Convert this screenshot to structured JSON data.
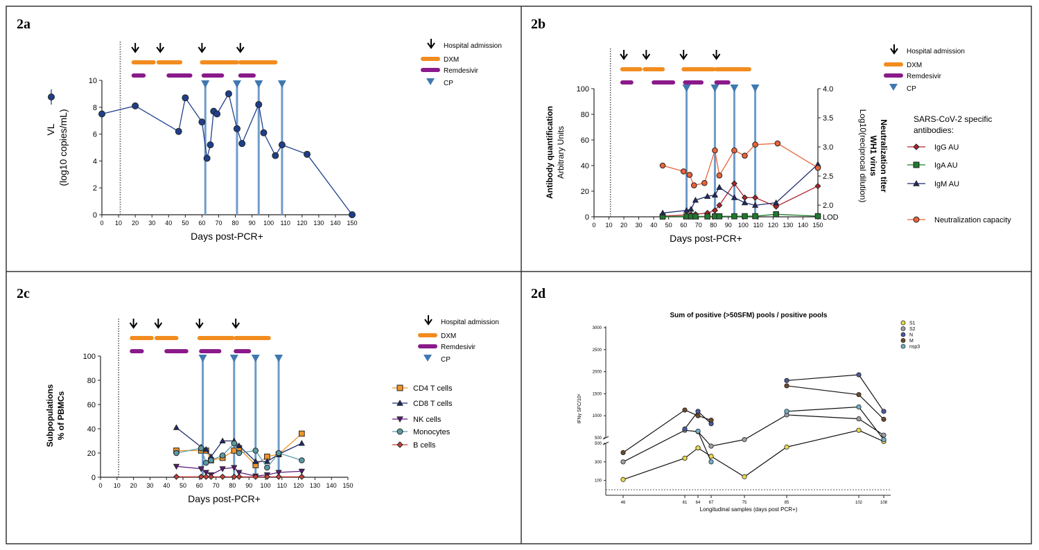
{
  "panels": {
    "a": "2a",
    "b": "2b",
    "c": "2c",
    "d": "2d"
  },
  "chart_data": [
    {
      "panel": "2a",
      "type": "line",
      "xlabel": "Days post-PCR+",
      "ylabel": "(log10 copies/mL)",
      "ylabel_marker": "VL",
      "xlim": [
        0,
        150
      ],
      "ylim": [
        0,
        10
      ],
      "xticks": [
        "0",
        "10",
        "20",
        "30",
        "40",
        "50",
        "60",
        "70",
        "80",
        "90",
        "100",
        "110",
        "120",
        "130",
        "140",
        "150"
      ],
      "yticks": [
        "0",
        "2",
        "4",
        "6",
        "8",
        "10"
      ],
      "treatment_start_day": 11,
      "legend": {
        "hospital": "Hospital admission",
        "dxm": "DXM",
        "remdesivir": "Remdesivir",
        "cp": "CP"
      },
      "admissions": [
        20,
        35,
        60,
        83
      ],
      "dxm": [
        [
          19,
          31
        ],
        [
          34,
          47
        ],
        [
          60,
          81
        ],
        [
          83,
          104
        ]
      ],
      "remdesivir": [
        [
          19,
          25
        ],
        [
          40,
          53
        ],
        [
          61,
          72
        ],
        [
          83,
          91
        ]
      ],
      "cp_days": [
        62,
        81,
        94,
        108
      ],
      "series": [
        {
          "x": [
            0,
            20,
            46,
            50,
            60,
            63,
            65,
            67,
            69,
            76,
            81,
            84,
            94,
            97,
            104,
            108,
            123,
            150
          ],
          "y": [
            7.5,
            8.1,
            6.2,
            8.7,
            6.9,
            4.2,
            5.2,
            7.7,
            7.5,
            9.0,
            6.4,
            5.3,
            8.2,
            6.1,
            4.4,
            5.2,
            4.5,
            0.0
          ]
        }
      ]
    },
    {
      "panel": "2b",
      "type": "line",
      "xlabel": "Days post-PCR+",
      "ylabel_left": [
        "Antibody quantification",
        "Arbitrary Units"
      ],
      "ylabel_right": [
        "Neutralization titer",
        "WH1 virus",
        "Log10(reciprocal dilution)"
      ],
      "xlim": [
        0,
        150
      ],
      "ylim_left": [
        0,
        100
      ],
      "ylim_right": [
        1.8,
        4.0
      ],
      "xticks": [
        "0",
        "10",
        "20",
        "30",
        "40",
        "50",
        "60",
        "70",
        "80",
        "90",
        "100",
        "110",
        "120",
        "130",
        "140",
        "150"
      ],
      "yticks_left": [
        "0",
        "20",
        "40",
        "60",
        "80",
        "100"
      ],
      "yticks_right": [
        "LOD",
        "2.0",
        "2.5",
        "3.0",
        "3.5",
        "4.0"
      ],
      "treatment_start_day": 11,
      "legend": {
        "hospital": "Hospital admission",
        "dxm": "DXM",
        "remdesivir": "Remdesivir",
        "cp": "CP"
      },
      "antibody_legend_title": "SARS-CoV-2 specific antibodies:",
      "admissions": [
        20,
        35,
        60,
        82
      ],
      "dxm": [
        [
          19,
          31
        ],
        [
          34,
          46
        ],
        [
          60,
          80
        ],
        [
          82,
          104
        ]
      ],
      "remdesivir": [
        [
          19,
          25
        ],
        [
          40,
          53
        ],
        [
          61,
          72
        ],
        [
          82,
          90
        ]
      ],
      "cp_days": [
        62,
        81,
        94,
        108
      ],
      "series": [
        {
          "name": "IgG AU",
          "color": "#b0242c",
          "marker": "diamond",
          "x": [
            46,
            62,
            65,
            68,
            76,
            81,
            84,
            94,
            101,
            108,
            122,
            150
          ],
          "y": [
            0.5,
            1.5,
            1.8,
            2.0,
            3.0,
            5.0,
            9.0,
            26.0,
            15.0,
            15.0,
            8.0,
            24.0
          ]
        },
        {
          "name": "IgA AU",
          "color": "#1f7a2c",
          "marker": "square",
          "x": [
            46,
            62,
            65,
            68,
            76,
            81,
            84,
            94,
            101,
            108,
            122,
            150
          ],
          "y": [
            0.2,
            0.3,
            0.3,
            0.3,
            0.3,
            0.4,
            0.4,
            0.4,
            0.5,
            0.5,
            2.0,
            0.5
          ]
        },
        {
          "name": "IgM AU",
          "color": "#1f2a6e",
          "marker": "triangle",
          "x": [
            46,
            62,
            65,
            68,
            76,
            81,
            84,
            94,
            101,
            108,
            122,
            150
          ],
          "y": [
            3.0,
            5.0,
            6.0,
            13.0,
            16.0,
            17.0,
            23.0,
            15.0,
            11.0,
            9.0,
            11.0,
            41.0
          ]
        },
        {
          "name": "Neutralization capacity",
          "color": "#e8643a",
          "marker": "circle",
          "axis": "right",
          "x": [
            46,
            60,
            64,
            67,
            74,
            81,
            84,
            94,
            101,
            108,
            123,
            150
          ],
          "y": [
            2.68,
            2.58,
            2.52,
            2.34,
            2.38,
            2.94,
            2.51,
            2.94,
            2.85,
            3.04,
            3.06,
            2.64
          ]
        }
      ]
    },
    {
      "panel": "2c",
      "type": "line",
      "xlabel": "Days post-PCR+",
      "ylabel": [
        "Subpopulations",
        "% of PBMCs"
      ],
      "xlim": [
        0,
        150
      ],
      "ylim": [
        0,
        100
      ],
      "xticks": [
        "0",
        "10",
        "20",
        "30",
        "40",
        "50",
        "60",
        "70",
        "80",
        "90",
        "100",
        "110",
        "120",
        "130",
        "140",
        "150"
      ],
      "yticks": [
        "0",
        "20",
        "40",
        "60",
        "80",
        "100"
      ],
      "treatment_start_day": 11,
      "legend": {
        "hospital": "Hospital admission",
        "dxm": "DXM",
        "remdesivir": "Remdesivir",
        "cp": "CP"
      },
      "admissions": [
        20,
        35,
        60,
        82
      ],
      "dxm": [
        [
          19,
          31
        ],
        [
          34,
          46
        ],
        [
          60,
          80
        ],
        [
          82,
          102
        ]
      ],
      "remdesivir": [
        [
          19,
          25
        ],
        [
          40,
          52
        ],
        [
          61,
          72
        ],
        [
          82,
          90
        ]
      ],
      "cp_days": [
        62,
        81,
        94,
        108
      ],
      "series": [
        {
          "name": "CD4 T cells",
          "color": "#f0952b",
          "marker": "square",
          "x": [
            46,
            61,
            64,
            67,
            74,
            81,
            84,
            94,
            101,
            108,
            122
          ],
          "y": [
            22,
            22,
            22,
            14,
            16,
            22,
            24,
            10,
            17,
            19,
            36
          ]
        },
        {
          "name": "CD8 T cells",
          "color": "#1f2a6e",
          "marker": "triangle",
          "x": [
            46,
            61,
            64,
            67,
            74,
            81,
            84,
            94,
            101,
            108,
            122
          ],
          "y": [
            41,
            25,
            23,
            17,
            30,
            30,
            26,
            13,
            13,
            19,
            28
          ]
        },
        {
          "name": "NK cells",
          "color": "#5c1a7a",
          "marker": "triangle-down",
          "x": [
            46,
            61,
            64,
            67,
            74,
            81,
            84,
            94,
            101,
            108,
            122
          ],
          "y": [
            9,
            7,
            4,
            2,
            7,
            8,
            4,
            1,
            2,
            4,
            5
          ]
        },
        {
          "name": "Monocytes",
          "color": "#5c9aa4",
          "marker": "circle",
          "x": [
            46,
            61,
            64,
            67,
            74,
            81,
            84,
            94,
            101,
            108,
            122
          ],
          "y": [
            20,
            24,
            12,
            14,
            18,
            28,
            20,
            22,
            8,
            20,
            14
          ]
        },
        {
          "name": "B cells",
          "color": "#c8423c",
          "marker": "diamond",
          "x": [
            46,
            61,
            64,
            67,
            74,
            81,
            84,
            94,
            101,
            108,
            122
          ],
          "y": [
            0.4,
            0.4,
            0.4,
            0.4,
            0.4,
            0.4,
            0.4,
            0.4,
            0.4,
            0.4,
            0.4
          ]
        }
      ]
    },
    {
      "panel": "2d",
      "type": "line",
      "title": "Sum of positive (>50SFM) pools / positive pools",
      "xlabel": "Longitudinal samples (days post PCR+)",
      "ylabel": "IFNγ SFC/10⁶",
      "x_categories": [
        "46",
        "61",
        "64",
        "67",
        "75",
        "85",
        "102",
        "108"
      ],
      "yticks_upper": [
        "500",
        "1000",
        "1500",
        "2000",
        "2500",
        "3000"
      ],
      "yticks_lower": [
        "100",
        "300",
        "500"
      ],
      "y_break": [
        500,
        550
      ],
      "dashed_reference": 50,
      "series": [
        {
          "name": "S1",
          "color": "#e8d94a",
          "y": [
            110,
            340,
            450,
            360,
            140,
            460,
            670,
            520
          ]
        },
        {
          "name": "S2",
          "color": "#9aa0a6",
          "y": [
            300,
            670,
            640,
            470,
            540,
            1020,
            930,
            560
          ]
        },
        {
          "name": "N",
          "color": "#4a5a9c",
          "y": [
            null,
            700,
            1100,
            820,
            null,
            1800,
            1930,
            1100
          ]
        },
        {
          "name": "M",
          "color": "#6b4a2a",
          "y": [
            400,
            1130,
            1000,
            900,
            null,
            1680,
            1480,
            920
          ]
        },
        {
          "name": "nsp3",
          "color": "#6fb0c8",
          "y": [
            null,
            null,
            650,
            300,
            null,
            1100,
            1200,
            540
          ]
        }
      ]
    }
  ]
}
